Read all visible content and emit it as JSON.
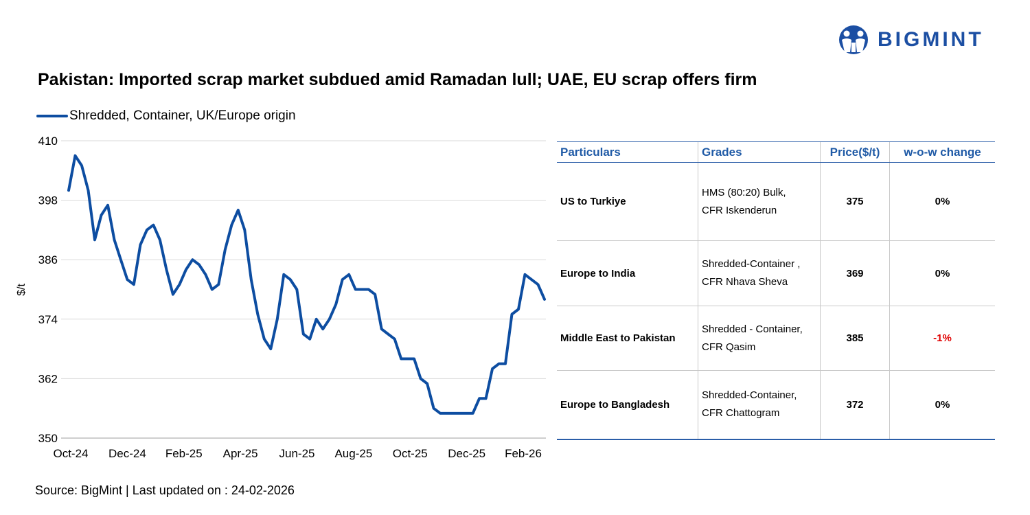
{
  "brand": {
    "name": "BIGMINT",
    "color": "#1c4fa3"
  },
  "title": "Pakistan: Imported scrap market subdued amid Ramadan lull; UAE, EU scrap offers firm",
  "source": "Source: BigMint | Last updated on : 24-02-2026",
  "chart_data": {
    "type": "line",
    "ylabel": "$/t",
    "ylim": [
      350,
      410
    ],
    "yticks": [
      "410",
      "398",
      "386",
      "374",
      "362",
      "350"
    ],
    "xticks": [
      "Oct-24",
      "Dec-24",
      "Feb-25",
      "Apr-25",
      "Jun-25",
      "Aug-25",
      "Oct-25",
      "Dec-25",
      "Feb-26"
    ],
    "grid": "horizontal",
    "legend_position": "top-left",
    "series": [
      {
        "name": "Shredded, Container, UK/Europe origin",
        "color": "#0d4da1",
        "values": [
          400,
          407,
          405,
          400,
          390,
          395,
          397,
          390,
          386,
          382,
          381,
          389,
          392,
          393,
          390,
          384,
          379,
          381,
          384,
          386,
          385,
          383,
          380,
          381,
          388,
          393,
          396,
          392,
          382,
          375,
          370,
          368,
          374,
          383,
          382,
          380,
          371,
          370,
          374,
          372,
          374,
          377,
          382,
          383,
          380,
          380,
          380,
          379,
          372,
          371,
          370,
          366,
          366,
          366,
          362,
          361,
          356,
          355,
          355,
          355,
          355,
          355,
          355,
          358,
          358,
          364,
          365,
          365,
          375,
          376,
          383,
          382,
          381,
          378
        ]
      }
    ]
  },
  "table": {
    "headers": [
      "Particulars",
      "Grades",
      "Price($/t)",
      "w-o-w change"
    ],
    "rows": [
      {
        "particular": "US to Turkiye",
        "grade_line1": "HMS (80:20) Bulk,",
        "grade_line2": "CFR Iskenderun",
        "price": "375",
        "change": "0%"
      },
      {
        "particular": "Europe to India",
        "grade_line1": "Shredded-Container ,",
        "grade_line2": "CFR Nhava Sheva",
        "price": "369",
        "change": "0%"
      },
      {
        "particular": "Middle East to Pakistan",
        "grade_line1": "Shredded - Container,",
        "grade_line2": "CFR Qasim",
        "price": "385",
        "change": "-1%"
      },
      {
        "particular": "Europe to Bangladesh",
        "grade_line1": "Shredded-Container,",
        "grade_line2": "CFR Chattogram",
        "price": "372",
        "change": "0%"
      }
    ]
  }
}
